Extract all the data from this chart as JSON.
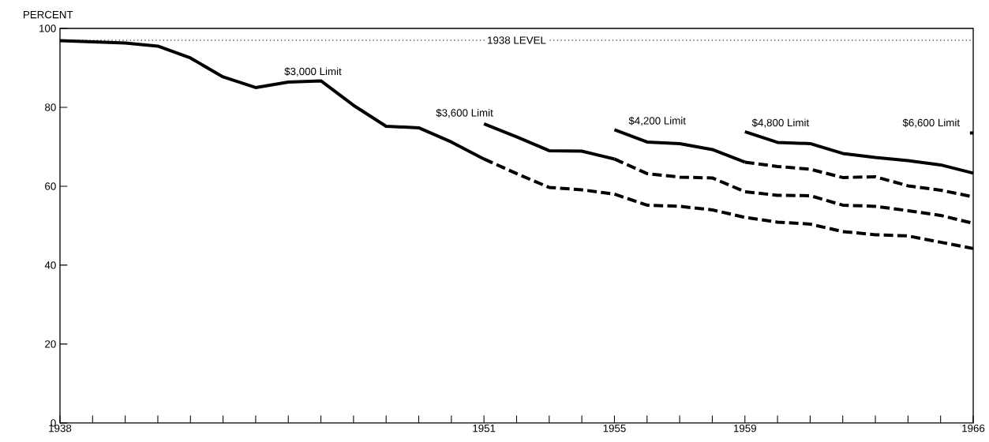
{
  "chart_data": {
    "type": "line",
    "ylabel": "PERCENT",
    "xlim": [
      1938,
      1966
    ],
    "ylim": [
      0,
      100
    ],
    "xticks": [
      1938,
      {
        "value": 1939,
        "label": null
      },
      {
        "value": 1940,
        "label": null
      },
      {
        "value": 1941,
        "label": null
      },
      {
        "value": 1942,
        "label": null
      },
      {
        "value": 1943,
        "label": null
      },
      {
        "value": 1944,
        "label": null
      },
      {
        "value": 1945,
        "label": null
      },
      {
        "value": 1946,
        "label": null
      },
      {
        "value": 1947,
        "label": null
      },
      {
        "value": 1948,
        "label": null
      },
      {
        "value": 1949,
        "label": null
      },
      {
        "value": 1950,
        "label": null
      },
      1951,
      {
        "value": 1952,
        "label": null
      },
      {
        "value": 1953,
        "label": null
      },
      {
        "value": 1954,
        "label": null
      },
      1955,
      {
        "value": 1956,
        "label": null
      },
      {
        "value": 1957,
        "label": null
      },
      {
        "value": 1958,
        "label": null
      },
      1959,
      {
        "value": 1960,
        "label": null
      },
      {
        "value": 1961,
        "label": null
      },
      {
        "value": 1962,
        "label": null
      },
      {
        "value": 1963,
        "label": null
      },
      {
        "value": 1964,
        "label": null
      },
      {
        "value": 1965,
        "label": null
      },
      1966
    ],
    "yticks": [
      0,
      20,
      40,
      60,
      80,
      100
    ],
    "series": [
      {
        "color": "#000000",
        "line_style": "solid",
        "x": [
          1938,
          1939,
          1940,
          1941,
          1942,
          1943,
          1944,
          1945,
          1946,
          1947,
          1948,
          1949,
          1950,
          1951
        ],
        "values": [
          96.9,
          96.6,
          96.3,
          95.5,
          92.5,
          87.7,
          85.0,
          86.4,
          86.7,
          80.5,
          75.2,
          74.8,
          71.2,
          66.9
        ]
      },
      {
        "color": "#000000",
        "line_style": "dashed",
        "x": [
          1951,
          1952,
          1953,
          1954,
          1955,
          1956,
          1957,
          1958,
          1959,
          1960,
          1961,
          1962,
          1963,
          1964,
          1965,
          1966
        ],
        "values": [
          66.9,
          63.2,
          59.7,
          59.1,
          58.0,
          55.2,
          54.9,
          54.0,
          52.1,
          50.9,
          50.4,
          48.5,
          47.7,
          47.4,
          45.8,
          44.2
        ]
      },
      {
        "color": "#000000",
        "line_style": "solid",
        "x": [
          1951,
          1952,
          1953,
          1954,
          1955
        ],
        "values": [
          75.8,
          72.5,
          69.0,
          68.9,
          66.9
        ]
      },
      {
        "color": "#000000",
        "line_style": "dashed",
        "x": [
          1955,
          1956,
          1957,
          1958,
          1959,
          1960,
          1961,
          1962,
          1963,
          1964,
          1965,
          1966
        ],
        "values": [
          66.9,
          63.2,
          62.3,
          62.1,
          58.6,
          57.7,
          57.6,
          55.2,
          54.9,
          53.8,
          52.6,
          50.6
        ]
      },
      {
        "color": "#000000",
        "line_style": "solid",
        "x": [
          1955,
          1956,
          1957,
          1958,
          1959
        ],
        "values": [
          74.3,
          71.2,
          70.8,
          69.3,
          66.1
        ]
      },
      {
        "color": "#000000",
        "line_style": "dashed",
        "x": [
          1959,
          1960,
          1961,
          1962,
          1963,
          1964,
          1965,
          1966
        ],
        "values": [
          66.1,
          65.0,
          64.3,
          62.2,
          62.4,
          60.1,
          59.0,
          57.3
        ]
      },
      {
        "color": "#000000",
        "line_style": "solid",
        "x": [
          1959,
          1960,
          1961,
          1962,
          1963,
          1964,
          1965,
          1966
        ],
        "values": [
          73.8,
          71.1,
          70.8,
          68.3,
          67.3,
          66.5,
          65.4,
          63.3
        ]
      },
      {
        "color": "#000000",
        "line_style": "solid",
        "x": [
          1965.9,
          1966
        ],
        "values": [
          73.5,
          73.5
        ]
      }
    ],
    "ref_lines": [
      {
        "axis": "y",
        "value": 97,
        "label": "1938 LEVEL",
        "line_style": "dotted"
      }
    ],
    "annotations": [
      "$3,000 Limit",
      "$3,600 Limit",
      "$4,200 Limit",
      "$4,800 Limit",
      "$6,600 Limit"
    ]
  }
}
